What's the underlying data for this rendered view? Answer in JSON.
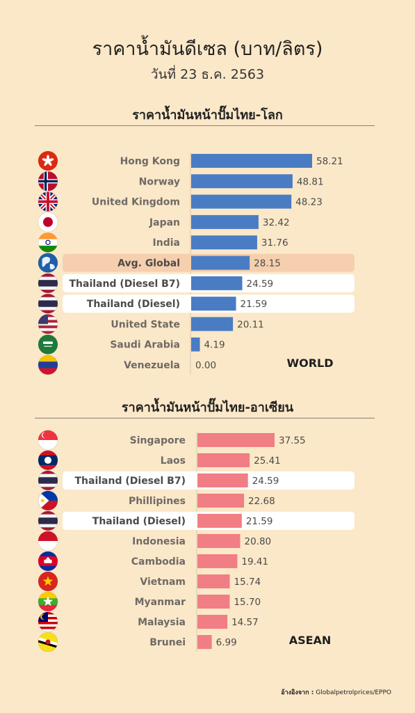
{
  "header": {
    "title": "ราคาน้ำมันดีเซล (บาท/ลิตร)",
    "subtitle": "วันที่ 23 ธ.ค. 2563"
  },
  "source": {
    "label": "อ้างอิงจาก :",
    "text": "Globalpetrolprices/EPPO"
  },
  "colors": {
    "world_bar": "#4a7cc4",
    "asean_bar": "#f07e84",
    "avg_highlight": "#f6cfae",
    "thailand_highlight": "#ffffff"
  },
  "chart_data": [
    {
      "type": "bar",
      "orientation": "horizontal",
      "title": "ราคาน้ำมันหน้าปั๊มไทย-โลก",
      "region_tag": "WORLD",
      "categories": [
        "Hong Kong",
        "Norway",
        "United Kingdom",
        "Japan",
        "India",
        "Avg. Global",
        "Thailand (Diesel B7)",
        "Thailand (Diesel)",
        "United State",
        "Saudi Arabia",
        "Venezuela"
      ],
      "values": [
        58.21,
        48.81,
        48.23,
        32.42,
        31.76,
        28.15,
        24.59,
        21.59,
        20.11,
        4.19,
        0.0
      ],
      "value_labels": [
        "58.21",
        "48.81",
        "48.23",
        "32.42",
        "31.76",
        "28.15",
        "24.59",
        "21.59",
        "20.11",
        "4.19",
        "0.00"
      ],
      "flags": [
        "hong-kong-flag-icon",
        "norway-flag-icon",
        "united-kingdom-flag-icon",
        "japan-flag-icon",
        "india-flag-icon",
        "globe-icon",
        "thailand-flag-icon",
        "thailand-flag-icon",
        "united-states-flag-icon",
        "saudi-arabia-flag-icon",
        "venezuela-flag-icon"
      ],
      "highlights": [
        "",
        "",
        "",
        "",
        "",
        "avg",
        "thailand",
        "thailand",
        "",
        "",
        ""
      ],
      "xlim": [
        0,
        58.21
      ],
      "grid": false,
      "legend": "none"
    },
    {
      "type": "bar",
      "orientation": "horizontal",
      "title": "ราคาน้ำมันหน้าปั๊มไทย-อาเซียน",
      "region_tag": "ASEAN",
      "categories": [
        "Singapore",
        "Laos",
        "Thailand (Diesel B7)",
        "Phillipines",
        "Thailand (Diesel)",
        "Indonesia",
        "Cambodia",
        "Vietnam",
        "Myanmar",
        "Malaysia",
        "Brunei"
      ],
      "values": [
        37.55,
        25.41,
        24.59,
        22.68,
        21.59,
        20.8,
        19.41,
        15.74,
        15.7,
        14.57,
        6.99
      ],
      "value_labels": [
        "37.55",
        "25.41",
        "24.59",
        "22.68",
        "21.59",
        "20.80",
        "19.41",
        "15.74",
        "15.70",
        "14.57",
        "6.99"
      ],
      "flags": [
        "singapore-flag-icon",
        "laos-flag-icon",
        "thailand-flag-icon",
        "philippines-flag-icon",
        "thailand-flag-icon",
        "indonesia-flag-icon",
        "cambodia-flag-icon",
        "vietnam-flag-icon",
        "myanmar-flag-icon",
        "malaysia-flag-icon",
        "brunei-flag-icon"
      ],
      "highlights": [
        "",
        "",
        "thailand",
        "",
        "thailand",
        "",
        "",
        "",
        "",
        "",
        ""
      ],
      "xlim": [
        0,
        37.55
      ],
      "grid": false,
      "legend": "none"
    }
  ]
}
